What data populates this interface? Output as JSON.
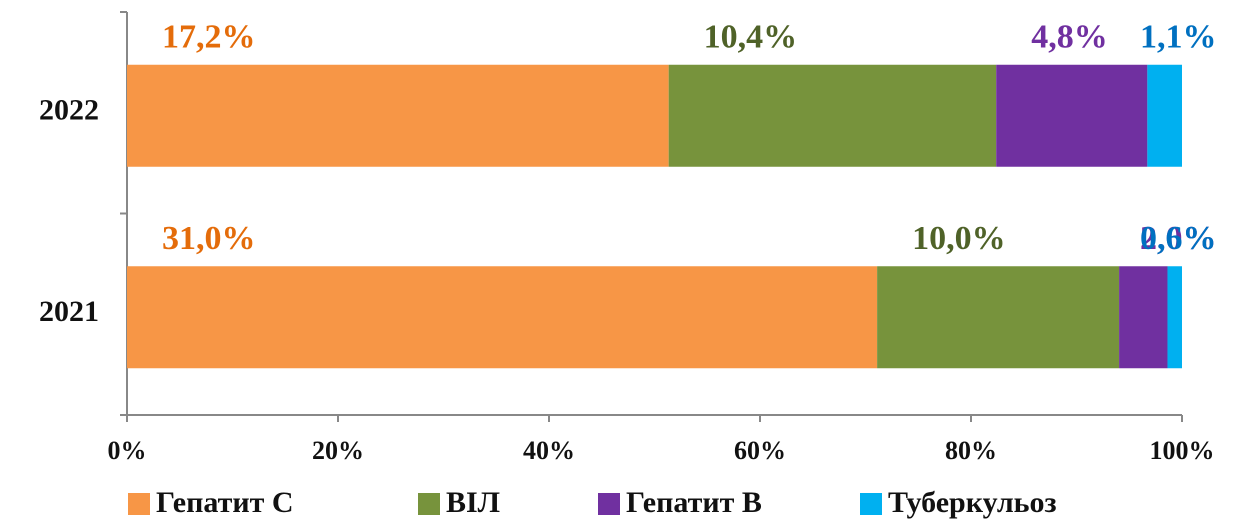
{
  "chart_data": {
    "type": "bar",
    "orientation": "horizontal",
    "stacked": "percent",
    "categories": [
      "2022",
      "2021"
    ],
    "series": [
      {
        "name": "Гепатит С",
        "color": "#f79646",
        "label_color": "#e46c0a",
        "values": [
          17.2,
          31.0
        ],
        "value_labels": [
          "17,2%",
          "31,0%"
        ]
      },
      {
        "name": "ВІЛ",
        "color": "#77933c",
        "label_color": "#4f6228",
        "values": [
          10.4,
          10.0
        ],
        "value_labels": [
          "10,4%",
          "10,0%"
        ]
      },
      {
        "name": "Гепатит В",
        "color": "#7030a0",
        "label_color": "#7030a0",
        "values": [
          4.8,
          2.0
        ],
        "value_labels": [
          "4,8%",
          "2,0%"
        ]
      },
      {
        "name": "Туберкульоз",
        "color": "#00b0f0",
        "label_color": "#0070c0",
        "values": [
          1.1,
          0.6
        ],
        "value_labels": [
          "1,1%",
          "0,6%"
        ]
      }
    ],
    "xlim": [
      0,
      100
    ],
    "xticks": [
      {
        "value": 0,
        "label": "0%"
      },
      {
        "value": 20,
        "label": "20%"
      },
      {
        "value": 40,
        "label": "40%"
      },
      {
        "value": 60,
        "label": "60%"
      },
      {
        "value": 80,
        "label": "80%"
      },
      {
        "value": 100,
        "label": "100%"
      }
    ],
    "grid": false,
    "legend": "bottom"
  }
}
